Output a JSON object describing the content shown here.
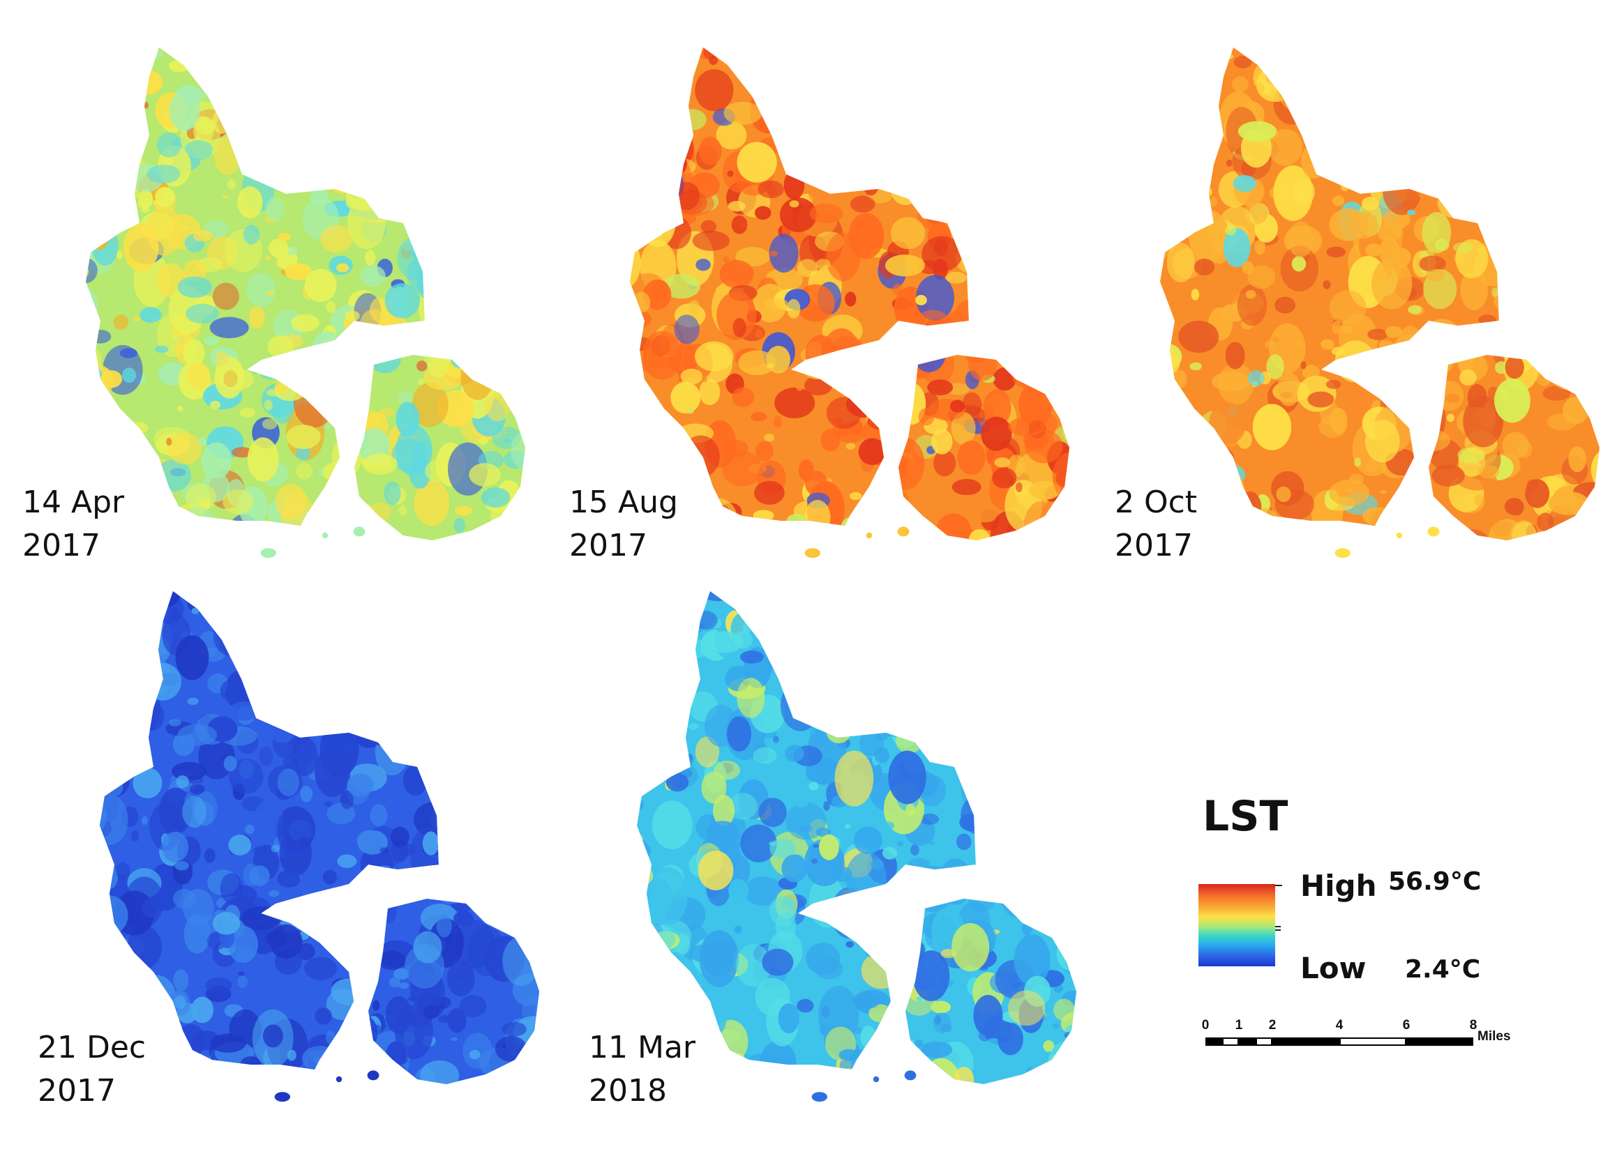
{
  "panels": [
    {
      "date_line1": "14 Apr",
      "date_line2": "2017",
      "palette": "mixed-cool",
      "colors": [
        "#b7e86f",
        "#e7f25a",
        "#fde047",
        "#a6efb0",
        "#5fd9e0",
        "#f0b32e",
        "#e3612a",
        "#3d63d8"
      ]
    },
    {
      "date_line1": "15 Aug",
      "date_line2": "2017",
      "palette": "hot",
      "colors": [
        "#f98d2a",
        "#ff6a20",
        "#e3371b",
        "#fbc53a",
        "#fde047",
        "#c9ec63",
        "#3b57d9"
      ]
    },
    {
      "date_line1": "2 Oct",
      "date_line2": "2017",
      "palette": "warm",
      "colors": [
        "#f98d2a",
        "#fcb234",
        "#e65a23",
        "#fde047",
        "#d9ef58",
        "#5fd9e0"
      ]
    },
    {
      "date_line1": "21 Dec",
      "date_line2": "2017",
      "palette": "cold",
      "colors": [
        "#2f5fe4",
        "#2546d3",
        "#3b82ec",
        "#1f38c4",
        "#49a6ef"
      ]
    },
    {
      "date_line1": "11 Mar",
      "date_line2": "2018",
      "palette": "cool",
      "colors": [
        "#3ec3ea",
        "#36a6ec",
        "#55dfe6",
        "#2f6fe2",
        "#c8ed6a",
        "#f3e25a"
      ]
    }
  ],
  "legend": {
    "title": "LST",
    "high_label": "High",
    "high_value": "56.9°C",
    "low_label": "Low",
    "low_value": "2.4°C"
  },
  "scale_bar": {
    "ticks": [
      "0",
      "1",
      "2",
      "4",
      "6",
      "8"
    ],
    "unit": "Miles"
  }
}
